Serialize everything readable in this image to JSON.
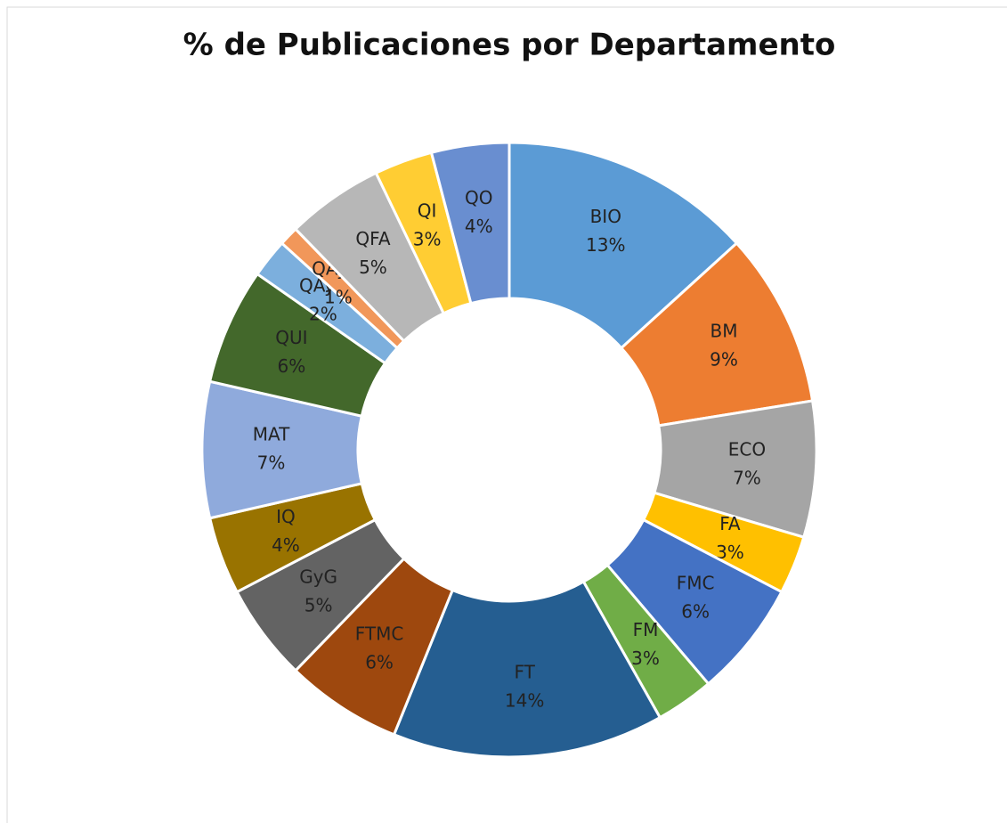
{
  "chart_data": {
    "type": "donut",
    "title": "% de Publicaciones por Departamento",
    "categories": [
      "BIO",
      "BM",
      "ECO",
      "FA",
      "FMC",
      "FM",
      "FT",
      "FTMC",
      "GyG",
      "IQ",
      "MAT",
      "QUI",
      "QAyB",
      "QAyAI",
      "QFA",
      "QI",
      "QO"
    ],
    "values": [
      13,
      9,
      7,
      3,
      6,
      3,
      14,
      6,
      5,
      4,
      7,
      6,
      2,
      1,
      5,
      3,
      4
    ],
    "value_labels": [
      "13%",
      "9%",
      "7%",
      "3%",
      "6%",
      "3%",
      "14%",
      "6%",
      "5%",
      "4%",
      "7%",
      "6%",
      "2%",
      "1%",
      "5%",
      "3%",
      "4%"
    ],
    "colors": [
      "#5b9bd5",
      "#ed7d31",
      "#a5a5a5",
      "#ffc000",
      "#4472c4",
      "#70ad47",
      "#255e91",
      "#9e480e",
      "#636363",
      "#997300",
      "#8faadc",
      "#43682b",
      "#7cafdd",
      "#f1975a",
      "#b7b7b7",
      "#ffcd33",
      "#698ed0"
    ]
  }
}
